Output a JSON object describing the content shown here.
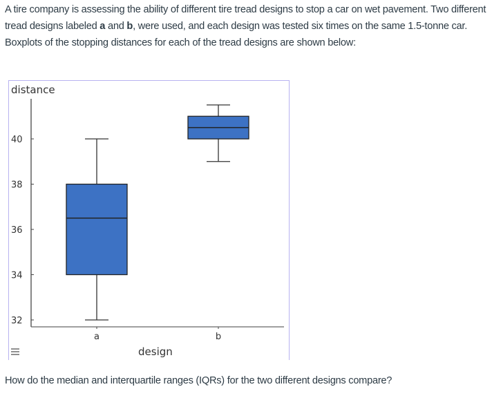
{
  "intro": {
    "part1": "A tire company is assessing the ability of different tire tread designs to stop a car on wet pavement. Two different tread designs labeled ",
    "a": "a",
    "part2": " and ",
    "b": "b",
    "part3": ", were used, and each design was tested six times on the same 1.5-tonne car. Boxplots of the stopping distances for each of the tread designs are shown below:"
  },
  "question": "How do the median and interquartile ranges (IQRs) for the two different designs compare?",
  "menu_icon": "hamburger-menu-icon",
  "chart_data": {
    "type": "boxplot",
    "ylabel": "distance",
    "xlabel": "design",
    "categories": [
      "a",
      "b"
    ],
    "yticks": [
      "32",
      "34",
      "36",
      "38",
      "40"
    ],
    "ylim": [
      31.7,
      42
    ],
    "box_color": "#3d72c4",
    "boxes": [
      {
        "category": "a",
        "min": 32,
        "q1": 34,
        "median": 36.5,
        "q3": 38,
        "max": 40
      },
      {
        "category": "b",
        "min": 39,
        "q1": 40,
        "median": 40.5,
        "q3": 41,
        "max": 41.5
      }
    ]
  }
}
